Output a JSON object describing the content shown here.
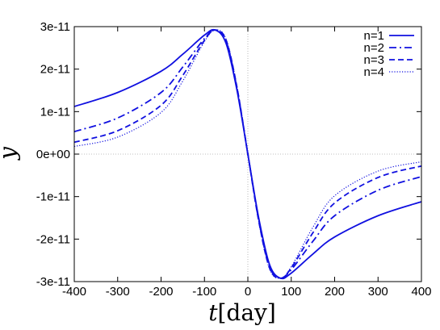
{
  "chart_data": {
    "type": "line",
    "xlabel_var": "t",
    "xlabel_unit": "[day]",
    "ylabel": "y",
    "xlim": [
      -400,
      400
    ],
    "ylim": [
      -3e-11,
      3e-11
    ],
    "x_ticks": [
      -400,
      -300,
      -200,
      -100,
      0,
      100,
      200,
      300,
      400
    ],
    "x_tick_labels": [
      "-400",
      "-300",
      "-200",
      "-100",
      "0",
      "100",
      "200",
      "300",
      "400"
    ],
    "y_ticks": [
      3e-11,
      2e-11,
      1e-11,
      0,
      -1e-11,
      -2e-11,
      -3e-11
    ],
    "y_tick_labels": [
      "3e-11",
      "2e-11",
      "1e-11",
      "0e+00",
      "-1e-11",
      "-2e-11",
      "-3e-11"
    ],
    "grid": false,
    "zero_lines": true,
    "legend_position": "top-right",
    "color": "#1010e0",
    "series": [
      {
        "name": "n=1",
        "style": "solid",
        "x": [
          -400,
          -300,
          -200,
          -150,
          -100,
          -75,
          -50,
          -25,
          0,
          25,
          50,
          75,
          100,
          150,
          200,
          300,
          400
        ],
        "y": [
          1.12e-11,
          1.45e-11,
          1.95e-11,
          2.35e-11,
          2.8e-11,
          2.92e-11,
          2.6e-11,
          1.5e-11,
          0,
          -1.5e-11,
          -2.6e-11,
          -2.92e-11,
          -2.8e-11,
          -2.35e-11,
          -1.95e-11,
          -1.45e-11,
          -1.12e-11
        ]
      },
      {
        "name": "n=2",
        "style": "dashdot",
        "x": [
          -400,
          -300,
          -200,
          -150,
          -100,
          -75,
          -50,
          -25,
          0,
          25,
          50,
          75,
          100,
          150,
          200,
          300,
          400
        ],
        "y": [
          5.3e-12,
          8.5e-12,
          1.45e-11,
          2.05e-11,
          2.72e-11,
          2.92e-11,
          2.65e-11,
          1.55e-11,
          0,
          -1.55e-11,
          -2.65e-11,
          -2.92e-11,
          -2.72e-11,
          -2.05e-11,
          -1.45e-11,
          -8.5e-12,
          -5.3e-12
        ]
      },
      {
        "name": "n=3",
        "style": "dashed",
        "x": [
          -400,
          -300,
          -200,
          -150,
          -100,
          -75,
          -50,
          -25,
          0,
          25,
          50,
          75,
          100,
          150,
          200,
          300,
          400
        ],
        "y": [
          2.8e-12,
          5.5e-12,
          1.15e-11,
          1.85e-11,
          2.68e-11,
          2.92e-11,
          2.68e-11,
          1.57e-11,
          0,
          -1.57e-11,
          -2.68e-11,
          -2.92e-11,
          -2.68e-11,
          -1.85e-11,
          -1.15e-11,
          -5.5e-12,
          -2.8e-12
        ]
      },
      {
        "name": "n=4",
        "style": "dotted",
        "x": [
          -400,
          -300,
          -200,
          -150,
          -100,
          -75,
          -50,
          -25,
          0,
          25,
          50,
          75,
          100,
          150,
          200,
          300,
          400
        ],
        "y": [
          1.8e-12,
          4e-12,
          9.8e-12,
          1.72e-11,
          2.65e-11,
          2.92e-11,
          2.7e-11,
          1.58e-11,
          0,
          -1.58e-11,
          -2.7e-11,
          -2.92e-11,
          -2.65e-11,
          -1.72e-11,
          -9.8e-12,
          -4e-12,
          -1.8e-12
        ]
      }
    ]
  }
}
